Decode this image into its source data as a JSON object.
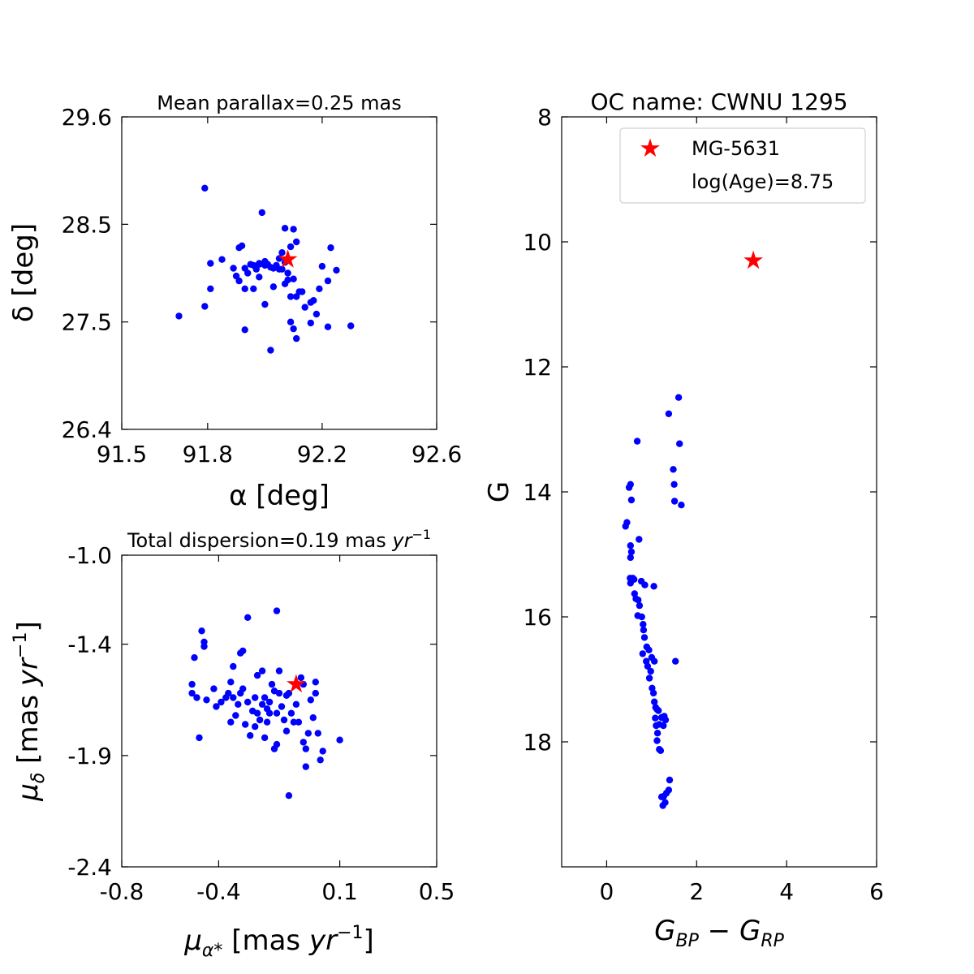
{
  "chart_data": [
    {
      "type": "scatter",
      "title": "Mean parallax=0.25 mas",
      "xlabel": "α [deg]",
      "ylabel": "δ [deg]",
      "xlim": [
        91.5,
        92.6
      ],
      "ylim": [
        26.4,
        29.6
      ],
      "xticks": [
        91.5,
        91.8,
        92.2,
        92.6
      ],
      "xtick_labels": [
        "91.5",
        "91.8",
        "92.2",
        "92.6"
      ],
      "yticks": [
        26.4,
        27.5,
        28.5,
        29.6
      ],
      "ytick_labels": [
        "26.4",
        "27.5",
        "28.5",
        "29.6"
      ],
      "marker_color": "#0000ff",
      "star_color": "#ff0000",
      "series": [
        {
          "marker": "dot",
          "points": [
            [
              91.7,
              27.56
            ],
            [
              91.79,
              28.87
            ],
            [
              91.79,
              27.66
            ],
            [
              91.81,
              28.1
            ],
            [
              91.81,
              27.84
            ],
            [
              91.85,
              28.14
            ],
            [
              91.89,
              28.05
            ],
            [
              91.9,
              27.97
            ],
            [
              91.91,
              28.26
            ],
            [
              91.91,
              27.92
            ],
            [
              91.92,
              28.28
            ],
            [
              91.93,
              27.42
            ],
            [
              91.93,
              28.05
            ],
            [
              91.93,
              27.84
            ],
            [
              91.94,
              28.0
            ],
            [
              91.95,
              28.09
            ],
            [
              91.96,
              28.08
            ],
            [
              91.96,
              27.84
            ],
            [
              91.97,
              28.04
            ],
            [
              91.98,
              28.09
            ],
            [
              91.98,
              28.1
            ],
            [
              91.98,
              27.96
            ],
            [
              91.99,
              28.62
            ],
            [
              92.0,
              28.12
            ],
            [
              92.0,
              28.08
            ],
            [
              92.0,
              27.68
            ],
            [
              92.01,
              28.09
            ],
            [
              92.02,
              28.06
            ],
            [
              92.02,
              27.21
            ],
            [
              92.03,
              28.05
            ],
            [
              92.03,
              27.86
            ],
            [
              92.04,
              28.08
            ],
            [
              92.05,
              28.15
            ],
            [
              92.05,
              28.04
            ],
            [
              92.06,
              28.04
            ],
            [
              92.06,
              28.21
            ],
            [
              92.07,
              28.11
            ],
            [
              92.07,
              27.89
            ],
            [
              92.07,
              28.46
            ],
            [
              92.08,
              28.0
            ],
            [
              92.08,
              27.93
            ],
            [
              92.09,
              28.27
            ],
            [
              92.09,
              27.5
            ],
            [
              92.09,
              27.76
            ],
            [
              92.1,
              27.43
            ],
            [
              92.1,
              28.45
            ],
            [
              92.1,
              27.94
            ],
            [
              92.11,
              28.32
            ],
            [
              92.11,
              27.33
            ],
            [
              92.11,
              27.76
            ],
            [
              92.12,
              27.81
            ],
            [
              92.13,
              27.81
            ],
            [
              92.14,
              27.65
            ],
            [
              92.16,
              27.49
            ],
            [
              92.16,
              27.7
            ],
            [
              92.17,
              27.72
            ],
            [
              92.18,
              27.58
            ],
            [
              92.19,
              27.84
            ],
            [
              92.2,
              28.07
            ],
            [
              92.22,
              27.45
            ],
            [
              92.22,
              27.92
            ],
            [
              92.23,
              28.26
            ],
            [
              92.25,
              28.03
            ],
            [
              92.3,
              27.46
            ]
          ]
        },
        {
          "marker": "star",
          "points": [
            [
              92.08,
              28.14
            ]
          ]
        }
      ]
    },
    {
      "type": "scatter",
      "title": "Total dispersion=0.19 mas yr⁻¹",
      "title_parts": {
        "pre": "Total dispersion=0.19 mas ",
        "unit": "yr",
        "sup": "−1"
      },
      "xlabel": "μα* [mas yr⁻¹]",
      "ylabel": "μδ [mas yr⁻¹]",
      "xlim": [
        -0.8,
        0.5
      ],
      "ylim": [
        -2.4,
        -1.0
      ],
      "xticks": [
        -0.8,
        -0.4,
        0.1,
        0.5
      ],
      "xtick_labels": [
        "-0.8",
        "-0.4",
        "0.1",
        "0.5"
      ],
      "yticks": [
        -2.4,
        -1.9,
        -1.4,
        -1.0
      ],
      "ytick_labels": [
        "-2.4",
        "-1.9",
        "-1.4",
        "-1.0"
      ],
      "series": [
        {
          "marker": "dot",
          "points": [
            [
              -0.51,
              -1.62
            ],
            [
              -0.51,
              -1.58
            ],
            [
              -0.5,
              -1.46
            ],
            [
              -0.49,
              -1.64
            ],
            [
              -0.48,
              -1.82
            ],
            [
              -0.47,
              -1.34
            ],
            [
              -0.46,
              -1.41
            ],
            [
              -0.46,
              -1.39
            ],
            [
              -0.45,
              -1.65
            ],
            [
              -0.42,
              -1.6
            ],
            [
              -0.41,
              -1.68
            ],
            [
              -0.39,
              -1.66
            ],
            [
              -0.37,
              -1.64
            ],
            [
              -0.36,
              -1.62
            ],
            [
              -0.35,
              -1.57
            ],
            [
              -0.35,
              -1.75
            ],
            [
              -0.34,
              -1.5
            ],
            [
              -0.34,
              -1.64
            ],
            [
              -0.33,
              -1.72
            ],
            [
              -0.32,
              -1.67
            ],
            [
              -0.31,
              -1.62
            ],
            [
              -0.31,
              -1.44
            ],
            [
              -0.3,
              -1.43
            ],
            [
              -0.3,
              -1.6
            ],
            [
              -0.29,
              -1.76
            ],
            [
              -0.28,
              -1.28
            ],
            [
              -0.28,
              -1.66
            ],
            [
              -0.27,
              -1.81
            ],
            [
              -0.26,
              -1.7
            ],
            [
              -0.25,
              -1.77
            ],
            [
              -0.25,
              -1.64
            ],
            [
              -0.24,
              -1.71
            ],
            [
              -0.24,
              -1.54
            ],
            [
              -0.23,
              -1.74
            ],
            [
              -0.22,
              -1.52
            ],
            [
              -0.22,
              -1.67
            ],
            [
              -0.21,
              -1.82
            ],
            [
              -0.21,
              -1.64
            ],
            [
              -0.2,
              -1.69
            ],
            [
              -0.2,
              -1.75
            ],
            [
              -0.19,
              -1.66
            ],
            [
              -0.19,
              -1.71
            ],
            [
              -0.18,
              -1.58
            ],
            [
              -0.17,
              -1.87
            ],
            [
              -0.17,
              -1.61
            ],
            [
              -0.16,
              -1.85
            ],
            [
              -0.16,
              -1.71
            ],
            [
              -0.16,
              -1.25
            ],
            [
              -0.15,
              -1.52
            ],
            [
              -0.15,
              -1.62
            ],
            [
              -0.14,
              -1.68
            ],
            [
              -0.13,
              -1.74
            ],
            [
              -0.12,
              -1.63
            ],
            [
              -0.12,
              -1.79
            ],
            [
              -0.11,
              -1.62
            ],
            [
              -0.11,
              -2.08
            ],
            [
              -0.1,
              -1.71
            ],
            [
              -0.09,
              -1.75
            ],
            [
              -0.08,
              -1.67
            ],
            [
              -0.07,
              -1.75
            ],
            [
              -0.06,
              -1.55
            ],
            [
              -0.05,
              -1.58
            ],
            [
              -0.05,
              -1.84
            ],
            [
              -0.04,
              -1.87
            ],
            [
              -0.04,
              -1.95
            ],
            [
              -0.03,
              -1.8
            ],
            [
              -0.02,
              -1.65
            ],
            [
              -0.01,
              -1.73
            ],
            [
              0.0,
              -1.62
            ],
            [
              0.0,
              -1.57
            ],
            [
              0.01,
              -1.8
            ],
            [
              0.02,
              -1.92
            ],
            [
              0.03,
              -1.88
            ],
            [
              0.1,
              -1.83
            ]
          ]
        },
        {
          "marker": "star",
          "points": [
            [
              -0.08,
              -1.58
            ]
          ]
        }
      ]
    },
    {
      "type": "scatter",
      "title": "OC name: CWNU 1295",
      "xlabel": "GBP − GRP",
      "ylabel": "G",
      "xlim": [
        -1,
        6
      ],
      "ylim": [
        20.0,
        8.0
      ],
      "y_inverted": true,
      "xticks": [
        0,
        2,
        4,
        6
      ],
      "xtick_labels": [
        "0",
        "2",
        "4",
        "6"
      ],
      "yticks": [
        8,
        10,
        12,
        14,
        16,
        18
      ],
      "ytick_labels": [
        "8",
        "10",
        "12",
        "14",
        "16",
        "18"
      ],
      "legend": {
        "placement": "upper right",
        "entries": [
          "MG-5631",
          "log(Age)=8.75"
        ]
      },
      "series": [
        {
          "name": "",
          "marker": "dot",
          "points": [
            [
              0.42,
              14.55
            ],
            [
              0.45,
              14.49
            ],
            [
              0.5,
              13.93
            ],
            [
              0.53,
              13.88
            ],
            [
              0.55,
              14.13
            ],
            [
              0.53,
              14.86
            ],
            [
              0.55,
              14.96
            ],
            [
              0.53,
              15.05
            ],
            [
              0.72,
              14.76
            ],
            [
              0.68,
              13.19
            ],
            [
              0.52,
              15.38
            ],
            [
              0.53,
              15.46
            ],
            [
              0.58,
              15.38
            ],
            [
              0.61,
              15.4
            ],
            [
              0.62,
              15.63
            ],
            [
              0.65,
              15.71
            ],
            [
              0.7,
              15.73
            ],
            [
              0.73,
              15.82
            ],
            [
              0.69,
              15.98
            ],
            [
              0.77,
              15.43
            ],
            [
              0.78,
              16.0
            ],
            [
              0.81,
              16.12
            ],
            [
              0.85,
              15.49
            ],
            [
              0.82,
              16.21
            ],
            [
              0.84,
              16.33
            ],
            [
              0.89,
              16.48
            ],
            [
              0.8,
              16.59
            ],
            [
              0.88,
              16.71
            ],
            [
              0.91,
              16.79
            ],
            [
              0.94,
              16.53
            ],
            [
              0.95,
              16.98
            ],
            [
              0.98,
              16.87
            ],
            [
              1.0,
              16.65
            ],
            [
              1.05,
              15.51
            ],
            [
              1.06,
              16.71
            ],
            [
              1.01,
              17.14
            ],
            [
              1.04,
              17.22
            ],
            [
              1.06,
              17.36
            ],
            [
              1.09,
              17.45
            ],
            [
              1.12,
              17.48
            ],
            [
              1.15,
              17.5
            ],
            [
              1.08,
              17.62
            ],
            [
              1.1,
              17.74
            ],
            [
              1.17,
              17.72
            ],
            [
              1.22,
              17.61
            ],
            [
              1.26,
              17.74
            ],
            [
              1.28,
              17.59
            ],
            [
              1.31,
              17.65
            ],
            [
              1.13,
              17.86
            ],
            [
              1.12,
              17.98
            ],
            [
              1.17,
              18.12
            ],
            [
              1.2,
              18.14
            ],
            [
              1.38,
              12.75
            ],
            [
              1.48,
              13.64
            ],
            [
              1.5,
              13.88
            ],
            [
              1.51,
              14.15
            ],
            [
              1.6,
              12.49
            ],
            [
              1.62,
              13.23
            ],
            [
              1.66,
              14.21
            ],
            [
              1.53,
              16.71
            ],
            [
              1.4,
              18.61
            ],
            [
              1.38,
              18.77
            ],
            [
              1.33,
              18.82
            ],
            [
              1.27,
              18.87
            ],
            [
              1.22,
              18.88
            ],
            [
              1.3,
              18.97
            ],
            [
              1.25,
              19.02
            ]
          ]
        },
        {
          "name": "MG-5631",
          "marker": "star",
          "points": [
            [
              3.26,
              10.3
            ]
          ]
        }
      ]
    }
  ]
}
